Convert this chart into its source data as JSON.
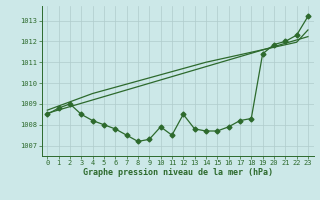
{
  "x": [
    0,
    1,
    2,
    3,
    4,
    5,
    6,
    7,
    8,
    9,
    10,
    11,
    12,
    13,
    14,
    15,
    16,
    17,
    18,
    19,
    20,
    21,
    22,
    23
  ],
  "series_jagged": [
    1008.5,
    1008.8,
    1009.0,
    1008.5,
    1008.2,
    1008.0,
    1007.8,
    1007.5,
    1007.2,
    1007.3,
    1007.9,
    1007.5,
    1008.5,
    1007.8,
    1007.7,
    1007.7,
    1007.9,
    1008.2,
    1008.3,
    1011.4,
    1011.85,
    1012.0,
    1012.3,
    1013.2
  ],
  "series_line1": [
    1008.55,
    1008.71,
    1008.87,
    1009.03,
    1009.19,
    1009.35,
    1009.51,
    1009.67,
    1009.83,
    1009.99,
    1010.15,
    1010.31,
    1010.47,
    1010.63,
    1010.79,
    1010.95,
    1011.11,
    1011.27,
    1011.43,
    1011.59,
    1011.75,
    1011.91,
    1012.07,
    1012.23
  ],
  "series_line2": [
    1008.7,
    1008.9,
    1009.1,
    1009.3,
    1009.5,
    1009.65,
    1009.8,
    1009.95,
    1010.1,
    1010.25,
    1010.4,
    1010.55,
    1010.7,
    1010.85,
    1011.0,
    1011.12,
    1011.24,
    1011.36,
    1011.48,
    1011.6,
    1011.72,
    1011.84,
    1011.96,
    1012.55
  ],
  "line_color": "#2d6a2d",
  "bg_color": "#cce8e8",
  "grid_color": "#b0cccc",
  "xlabel": "Graphe pression niveau de la mer (hPa)",
  "ylim": [
    1006.5,
    1013.7
  ],
  "xlim": [
    -0.5,
    23.5
  ],
  "yticks": [
    1007,
    1008,
    1009,
    1010,
    1011,
    1012,
    1013
  ],
  "xticks": [
    0,
    1,
    2,
    3,
    4,
    5,
    6,
    7,
    8,
    9,
    10,
    11,
    12,
    13,
    14,
    15,
    16,
    17,
    18,
    19,
    20,
    21,
    22,
    23
  ],
  "markersize": 2.5,
  "linewidth": 0.9,
  "tick_fontsize": 5.0,
  "xlabel_fontsize": 6.0
}
